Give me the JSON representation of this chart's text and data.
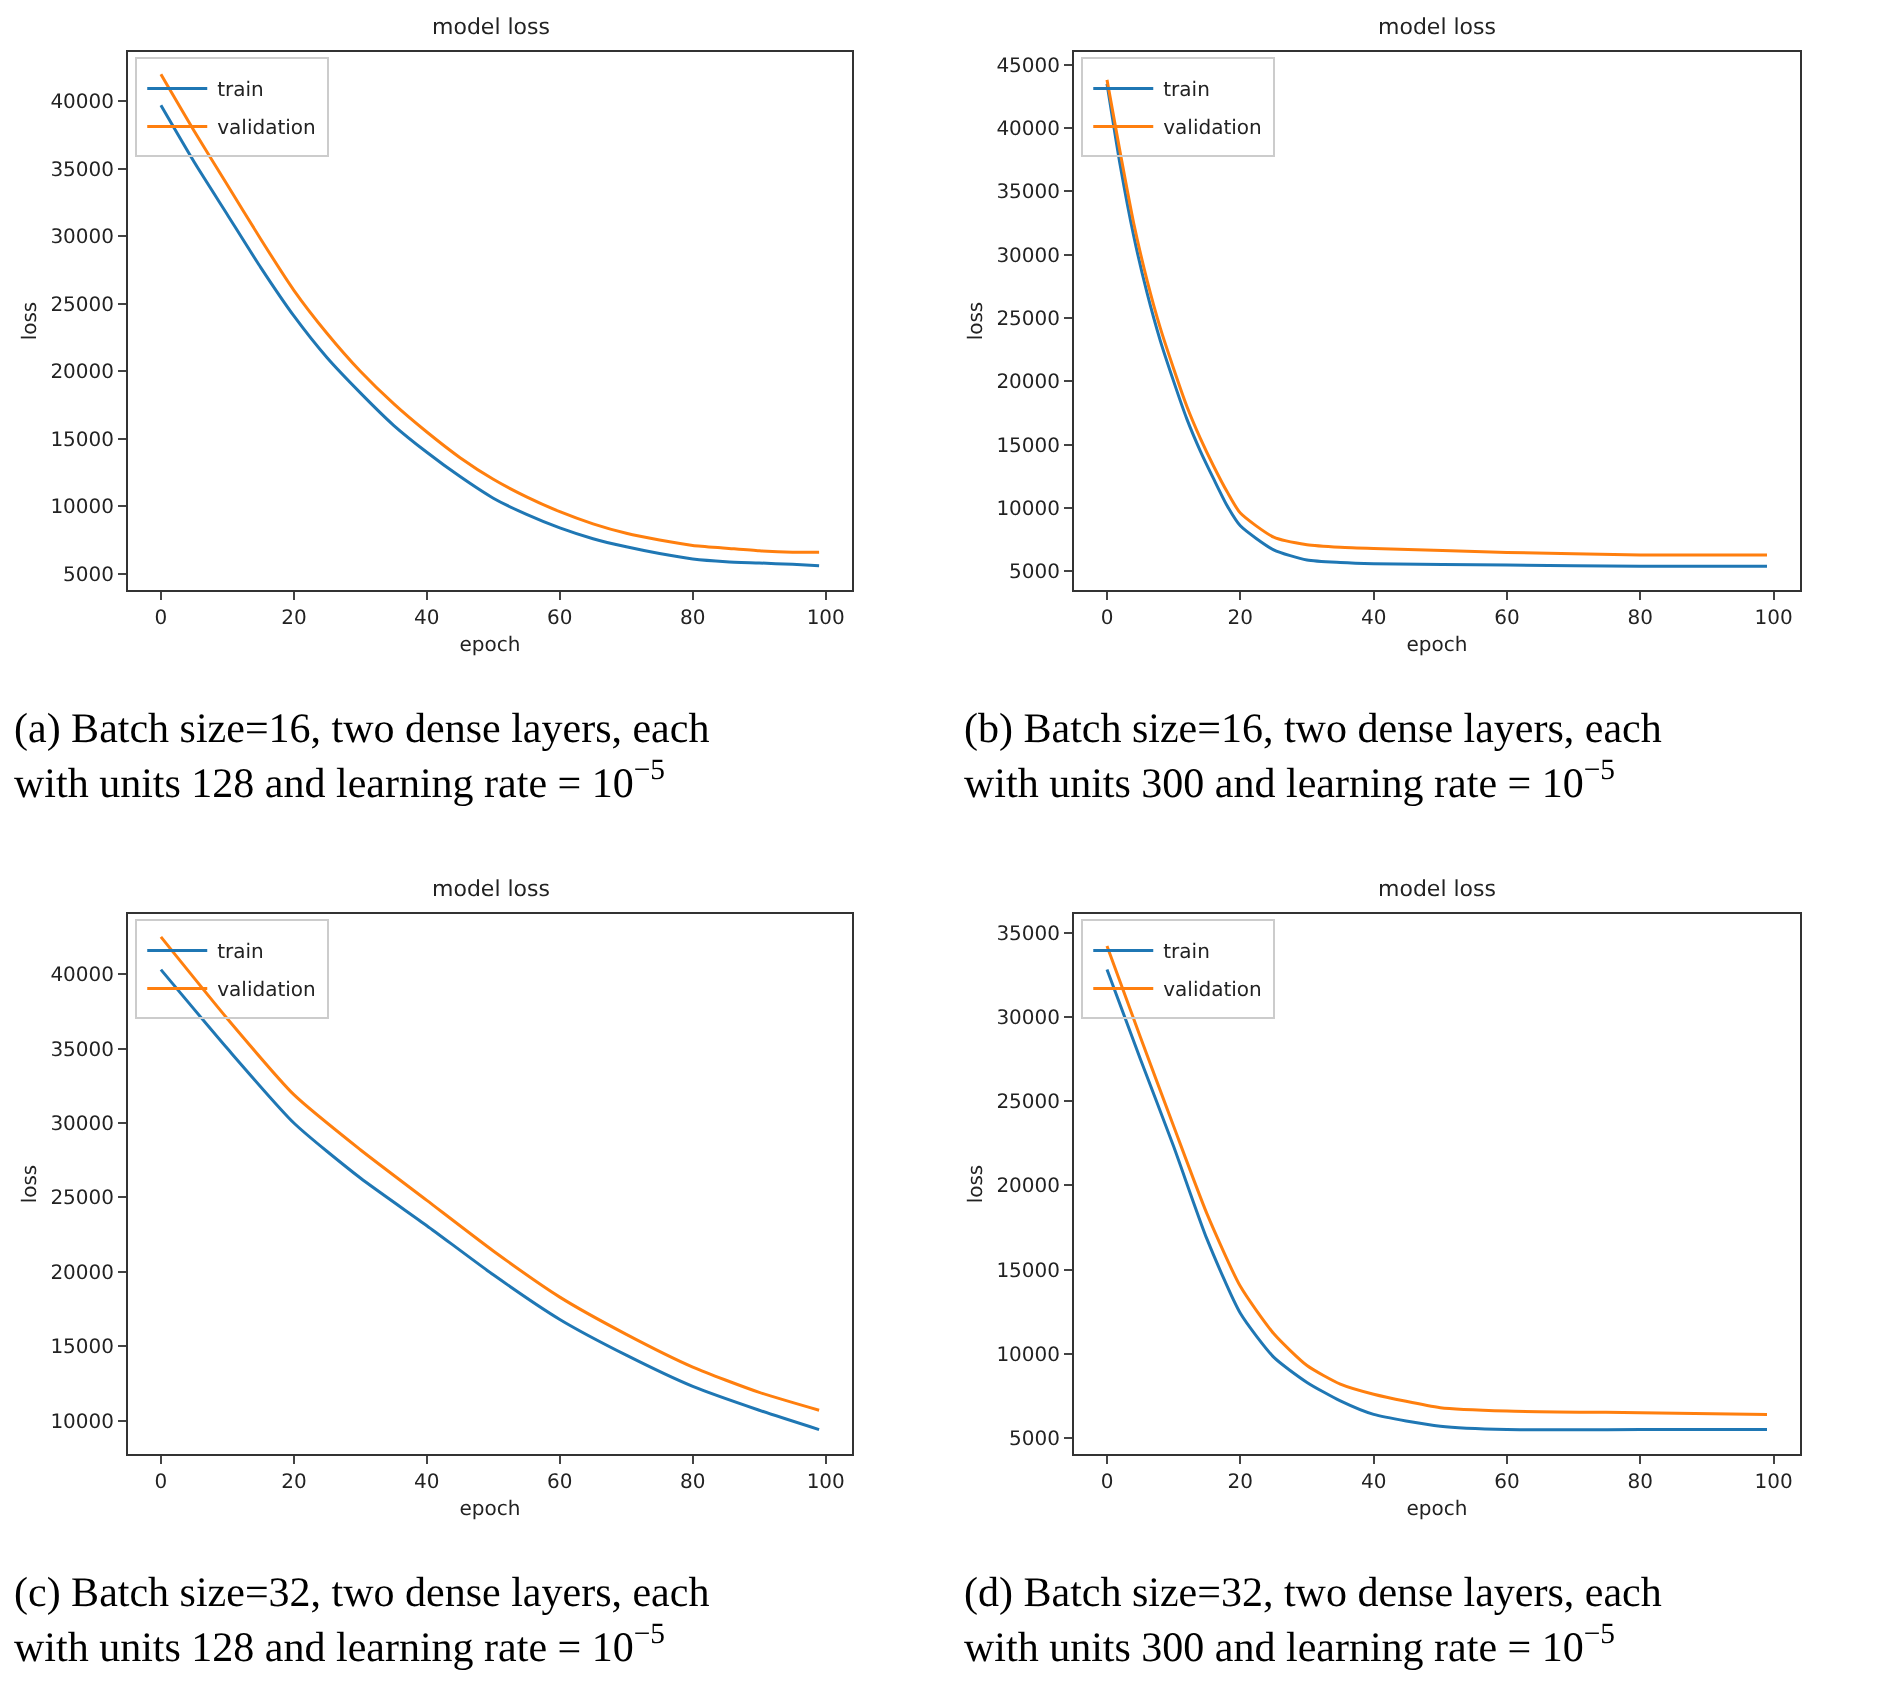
{
  "chart_data": [
    {
      "type": "line",
      "title": "model loss",
      "xlabel": "epoch",
      "ylabel": "loss",
      "xlim": [
        -4.95,
        103.95
      ],
      "xticks": [
        0,
        20,
        40,
        60,
        80,
        100
      ],
      "ylim": [
        3800,
        43650
      ],
      "yticks": [
        5000,
        10000,
        15000,
        20000,
        25000,
        30000,
        35000,
        40000
      ],
      "legend": "top left",
      "annotations": [
        "(a) Batch size=16, two dense layers, each with units 128 and learning rate = 10$^{−5}$"
      ],
      "series": [
        {
          "name": "train",
          "color": "#1f77b4",
          "x": [
            0,
            5,
            10,
            15,
            20,
            25,
            30,
            35,
            40,
            45,
            50,
            55,
            60,
            65,
            70,
            75,
            80,
            85,
            90,
            95,
            99
          ],
          "values": [
            39700,
            35500,
            31600,
            27700,
            24100,
            21000,
            18400,
            16000,
            14000,
            12200,
            10600,
            9400,
            8400,
            7600,
            7000,
            6500,
            6100,
            5900,
            5800,
            5700,
            5600
          ]
        },
        {
          "name": "validation",
          "color": "#ff7f0e",
          "x": [
            0,
            5,
            10,
            15,
            20,
            25,
            30,
            35,
            40,
            45,
            50,
            55,
            60,
            65,
            70,
            75,
            80,
            85,
            90,
            95,
            99
          ],
          "values": [
            42000,
            37800,
            33800,
            29800,
            26000,
            22800,
            20000,
            17600,
            15500,
            13600,
            12000,
            10700,
            9600,
            8700,
            8000,
            7500,
            7100,
            6900,
            6700,
            6600,
            6600
          ]
        }
      ]
    },
    {
      "type": "line",
      "title": "model loss",
      "xlabel": "epoch",
      "ylabel": "loss",
      "xlim": [
        -4.95,
        103.95
      ],
      "xticks": [
        0,
        20,
        40,
        60,
        80,
        100
      ],
      "ylim": [
        3530,
        46000
      ],
      "yticks": [
        5000,
        10000,
        15000,
        20000,
        25000,
        30000,
        35000,
        40000,
        45000
      ],
      "legend": "top left",
      "annotations": [
        "(b) Batch size=16, two dense layers, each with units 300 and learning rate = 10$^{−5}$"
      ],
      "series": [
        {
          "name": "train",
          "color": "#1f77b4",
          "x": [
            0,
            2,
            4,
            6,
            8,
            10,
            12,
            14,
            16,
            18,
            20,
            25,
            30,
            35,
            40,
            60,
            80,
            99
          ],
          "values": [
            43500,
            37000,
            31500,
            27000,
            23200,
            20000,
            17000,
            14500,
            12300,
            10200,
            8600,
            6700,
            5900,
            5700,
            5600,
            5500,
            5400,
            5400
          ]
        },
        {
          "name": "validation",
          "color": "#ff7f0e",
          "x": [
            0,
            2,
            4,
            6,
            8,
            10,
            12,
            14,
            16,
            18,
            20,
            25,
            30,
            35,
            40,
            60,
            80,
            99
          ],
          "values": [
            43800,
            38000,
            32500,
            28000,
            24200,
            21000,
            18000,
            15500,
            13300,
            11300,
            9600,
            7700,
            7100,
            6900,
            6800,
            6500,
            6300,
            6300
          ]
        }
      ]
    },
    {
      "type": "line",
      "title": "model loss",
      "xlabel": "epoch",
      "ylabel": "loss",
      "xlim": [
        -4.95,
        103.95
      ],
      "xticks": [
        0,
        20,
        40,
        60,
        80,
        100
      ],
      "ylim": [
        7760,
        44040
      ],
      "yticks": [
        10000,
        15000,
        20000,
        25000,
        30000,
        35000,
        40000
      ],
      "legend": "top left",
      "annotations": [
        "(c) Batch size=32, two dense layers, each with units 128 and learning rate = 10$^{−5}$"
      ],
      "series": [
        {
          "name": "train",
          "color": "#1f77b4",
          "x": [
            0,
            10,
            20,
            30,
            40,
            50,
            60,
            70,
            80,
            90,
            99
          ],
          "values": [
            40300,
            35000,
            30000,
            26300,
            23100,
            19800,
            16800,
            14400,
            12300,
            10700,
            9400
          ]
        },
        {
          "name": "validation",
          "color": "#ff7f0e",
          "x": [
            0,
            10,
            20,
            30,
            40,
            50,
            60,
            70,
            80,
            90,
            99
          ],
          "values": [
            42500,
            37000,
            31900,
            28200,
            24800,
            21400,
            18300,
            15800,
            13600,
            11900,
            10700
          ]
        }
      ]
    },
    {
      "type": "line",
      "title": "model loss",
      "xlabel": "epoch",
      "ylabel": "loss",
      "xlim": [
        -4.95,
        103.95
      ],
      "xticks": [
        0,
        20,
        40,
        60,
        80,
        100
      ],
      "ylim": [
        4050,
        36100
      ],
      "yticks": [
        5000,
        10000,
        15000,
        20000,
        25000,
        30000,
        35000
      ],
      "legend": "top left",
      "annotations": [
        "(d) Batch size=32, two dense layers, each with units 300 and learning rate = 10$^{−5}$"
      ],
      "series": [
        {
          "name": "train",
          "color": "#1f77b4",
          "x": [
            0,
            5,
            10,
            15,
            20,
            25,
            30,
            35,
            40,
            50,
            60,
            80,
            99
          ],
          "values": [
            32800,
            27500,
            22300,
            16800,
            12400,
            9800,
            8300,
            7200,
            6400,
            5700,
            5500,
            5500,
            5500
          ]
        },
        {
          "name": "validation",
          "color": "#ff7f0e",
          "x": [
            0,
            5,
            10,
            15,
            20,
            25,
            30,
            35,
            40,
            50,
            60,
            80,
            99
          ],
          "values": [
            34200,
            28800,
            23500,
            18300,
            14000,
            11200,
            9300,
            8200,
            7600,
            6800,
            6600,
            6500,
            6400
          ]
        }
      ]
    }
  ]
}
